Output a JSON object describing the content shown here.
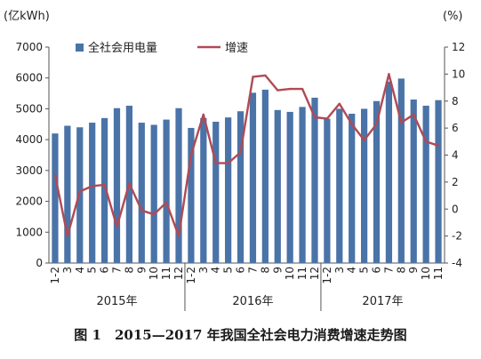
{
  "caption": "图 1　2015—2017 年我国全社会电力消费增速走势图",
  "chart_data": {
    "type": "bar+line",
    "left_unit": "(亿kWh)",
    "right_unit": "(%)",
    "legend": {
      "bar": "全社会用电量",
      "line": "增速",
      "placement": "top-center"
    },
    "y_left": {
      "min": 0,
      "max": 7000,
      "ticks": [
        0,
        1000,
        2000,
        3000,
        4000,
        5000,
        6000,
        7000
      ]
    },
    "y_right": {
      "min": -4,
      "max": 12,
      "ticks": [
        -4,
        -2,
        0,
        2,
        4,
        6,
        8,
        10,
        12
      ]
    },
    "categories": [
      "1-2",
      "3",
      "4",
      "5",
      "6",
      "7",
      "8",
      "9",
      "10",
      "11",
      "12",
      "1-2",
      "3",
      "4",
      "5",
      "6",
      "7",
      "8",
      "9",
      "10",
      "11",
      "12",
      "1-2",
      "3",
      "4",
      "5",
      "6",
      "7",
      "8",
      "9",
      "10",
      "11"
    ],
    "years": [
      {
        "label": "2015年",
        "start": 0,
        "end": 10
      },
      {
        "label": "2016年",
        "start": 11,
        "end": 21
      },
      {
        "label": "2017年",
        "start": 22,
        "end": 31
      }
    ],
    "bar_color": "#4a73a8",
    "line_color": "#b04a55",
    "series": [
      {
        "name": "全社会用电量",
        "kind": "bar",
        "values": [
          4200,
          4450,
          4400,
          4550,
          4700,
          5020,
          5100,
          4550,
          4480,
          4650,
          5020,
          4380,
          4700,
          4580,
          4720,
          4920,
          5520,
          5620,
          4960,
          4900,
          5060,
          5360,
          4680,
          5000,
          4840,
          5000,
          5250,
          5880,
          5980,
          5300,
          5100,
          5280
        ]
      },
      {
        "name": "增速",
        "kind": "line",
        "values": [
          2.5,
          -2.0,
          1.3,
          1.7,
          1.8,
          -1.3,
          1.9,
          -0.1,
          -0.4,
          0.5,
          -2.0,
          4.0,
          7.0,
          3.4,
          3.4,
          4.2,
          9.8,
          9.9,
          8.8,
          8.9,
          8.9,
          6.8,
          6.7,
          7.8,
          6.3,
          5.1,
          6.3,
          10.0,
          6.4,
          7.0,
          5.0,
          4.7
        ]
      }
    ]
  }
}
